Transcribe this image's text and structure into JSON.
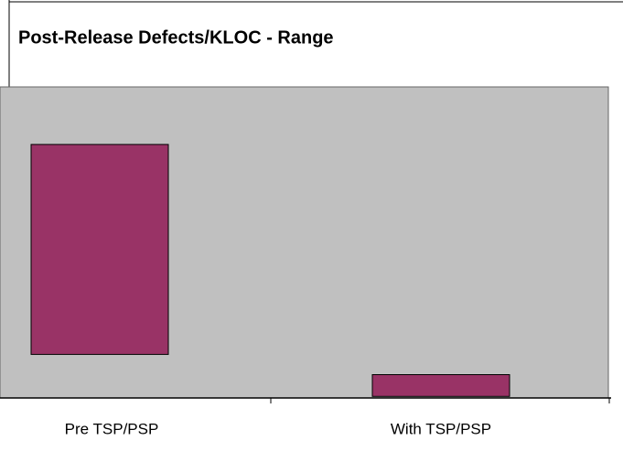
{
  "chart_data": {
    "type": "range_bar",
    "title": "Post-Release Defects/KLOC - Range",
    "categories": [
      "Pre TSP/PSP",
      "With TSP/PSP"
    ],
    "low": [
      1.4,
      0.05
    ],
    "high": [
      8.15,
      0.75
    ],
    "color": "#993366",
    "ylim": [
      0,
      10
    ]
  }
}
